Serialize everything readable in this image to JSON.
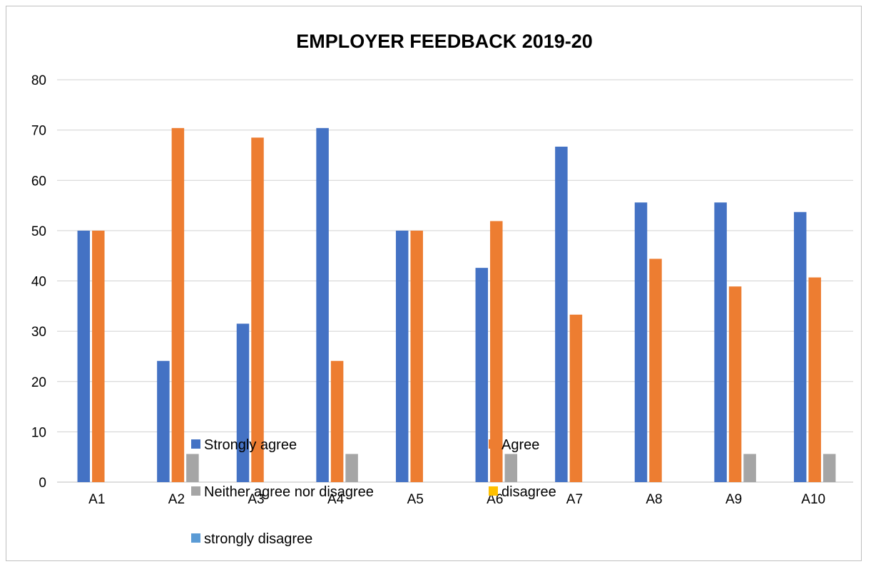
{
  "chart_data": {
    "type": "bar",
    "title": "EMPLOYER FEEDBACK 2019-20",
    "xlabel": "",
    "ylabel": "",
    "categories": [
      "A1",
      "A2",
      "A3",
      "A4",
      "A5",
      "A6",
      "A7",
      "A8",
      "A9",
      "A10"
    ],
    "ylim": [
      0,
      80
    ],
    "yticks": [
      0,
      10,
      20,
      30,
      40,
      50,
      60,
      70,
      80
    ],
    "grid": true,
    "legend_position": "inside-bottom",
    "series": [
      {
        "name": "Strongly agree",
        "color": "#4472c4",
        "values": [
          50,
          24.1,
          31.5,
          70.4,
          50,
          42.6,
          66.7,
          55.6,
          55.6,
          53.7
        ]
      },
      {
        "name": "Agree",
        "color": "#ed7d31",
        "values": [
          50,
          70.4,
          68.5,
          24.1,
          50,
          51.9,
          33.3,
          44.4,
          38.9,
          40.7
        ]
      },
      {
        "name": "Neither agree nor disagree",
        "color": "#a5a5a5",
        "values": [
          0,
          5.6,
          0,
          5.6,
          0,
          5.6,
          0,
          0,
          5.6,
          5.6
        ]
      },
      {
        "name": "disagree",
        "color": "#ffc000",
        "values": [
          0,
          0,
          0,
          0,
          0,
          0,
          0,
          0,
          0,
          0
        ]
      },
      {
        "name": "strongly disagree",
        "color": "#5b9bd5",
        "values": [
          0,
          0,
          0,
          0,
          0,
          0,
          0,
          0,
          0,
          0
        ]
      }
    ]
  }
}
